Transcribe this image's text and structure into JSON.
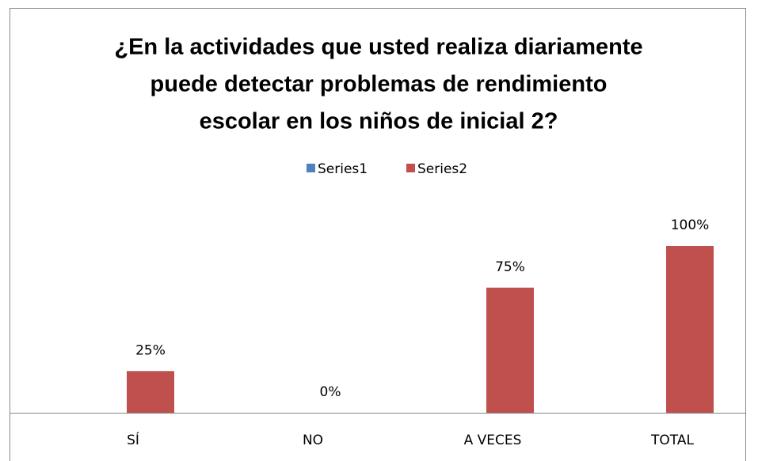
{
  "chart_data": {
    "type": "bar",
    "title": [
      "¿En la actividades que usted realiza diariamente",
      "puede detectar problemas de rendimiento",
      "escolar en los niños de inicial 2?"
    ],
    "categories": [
      "SÍ",
      "NO",
      "A VECES",
      "TOTAL"
    ],
    "series": [
      {
        "name": "Series1",
        "color": "#4f81bd",
        "values": [
          null,
          null,
          null,
          null
        ]
      },
      {
        "name": "Series2",
        "color": "#c0504d",
        "values": [
          25,
          0,
          75,
          100
        ],
        "value_labels": [
          "25%",
          "0%",
          "75%",
          "100%"
        ]
      }
    ],
    "ylim": [
      0,
      100
    ],
    "legend": "top"
  }
}
